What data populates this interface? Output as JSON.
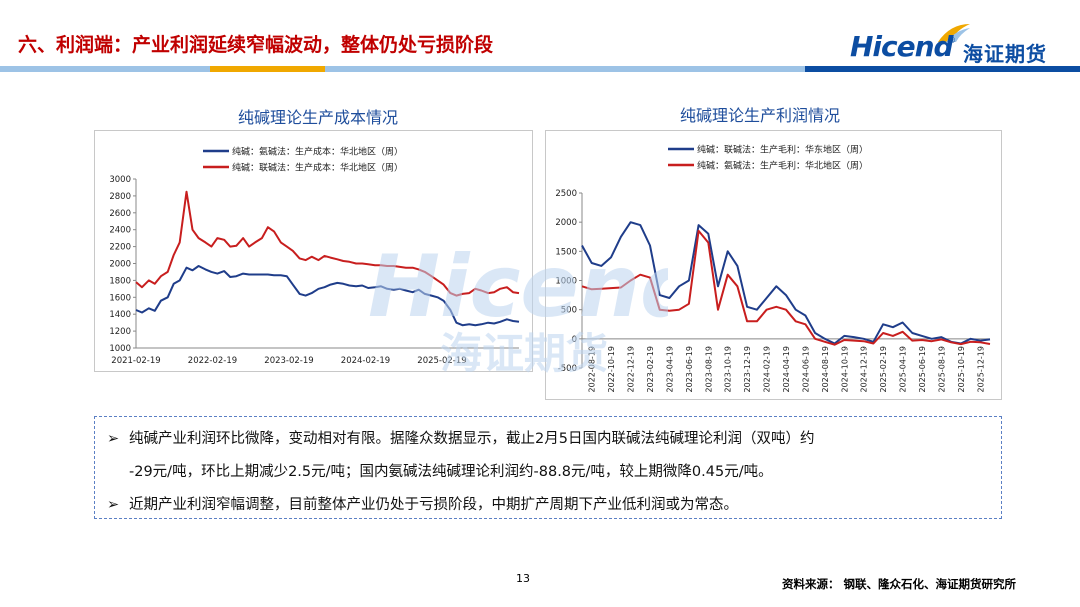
{
  "header": {
    "title": "六、利润端：产业利润延续窄幅波动，整体仍处亏损阶段"
  },
  "logo": {
    "brand_en": "Hicend",
    "brand_cn": "海证期货",
    "reg_mark": "®"
  },
  "watermark": {
    "text_en": "Hicend",
    "text_cn": "海证期货"
  },
  "colors": {
    "title_red": "#c00000",
    "chart_title_blue": "#1f4e9c",
    "series_navy": "#1f3d8a",
    "series_red": "#c81e1e",
    "stripe_gold": "#f0a800",
    "stripe_blue": "#0c4da2",
    "stripe_light": "#9dc3e6"
  },
  "chart_data": [
    {
      "type": "line",
      "title": "纯碱理论生产成本情况",
      "x_tick_labels": [
        "2021-02-19",
        "2022-02-19",
        "2023-02-19",
        "2024-02-19",
        "2025-02-19"
      ],
      "ylim": [
        1000,
        3000
      ],
      "y_ticks": [
        1000,
        1200,
        1400,
        1600,
        1800,
        2000,
        2200,
        2400,
        2600,
        2800,
        3000
      ],
      "legend_position": "top",
      "grid": false,
      "x": [
        2021.0,
        2021.08,
        2021.17,
        2021.25,
        2021.33,
        2021.42,
        2021.5,
        2021.58,
        2021.67,
        2021.75,
        2021.83,
        2021.92,
        2022.0,
        2022.08,
        2022.17,
        2022.25,
        2022.33,
        2022.42,
        2022.5,
        2022.58,
        2022.67,
        2022.75,
        2022.83,
        2022.92,
        2023.0,
        2023.08,
        2023.17,
        2023.25,
        2023.33,
        2023.42,
        2023.5,
        2023.58,
        2023.67,
        2023.75,
        2023.83,
        2023.92,
        2024.0,
        2024.08,
        2024.17,
        2024.25,
        2024.33,
        2024.42,
        2024.5,
        2024.58,
        2024.67,
        2024.75,
        2024.83,
        2024.92,
        2025.0,
        2025.08,
        2025.17,
        2025.25,
        2025.33,
        2025.42,
        2025.5,
        2025.58,
        2025.67,
        2025.75,
        2025.83,
        2025.92,
        2026.0,
        2026.08
      ],
      "series": [
        {
          "name": "纯碱：氨碱法：生产成本：华北地区（周）",
          "color": "#1f3d8a",
          "values": [
            1450,
            1420,
            1470,
            1440,
            1560,
            1600,
            1760,
            1800,
            1950,
            1920,
            1970,
            1930,
            1900,
            1880,
            1910,
            1840,
            1850,
            1880,
            1870,
            1870,
            1870,
            1870,
            1860,
            1860,
            1850,
            1750,
            1640,
            1620,
            1650,
            1700,
            1720,
            1750,
            1770,
            1760,
            1740,
            1730,
            1740,
            1710,
            1720,
            1730,
            1700,
            1690,
            1700,
            1680,
            1660,
            1690,
            1640,
            1620,
            1600,
            1560,
            1450,
            1300,
            1270,
            1280,
            1270,
            1280,
            1300,
            1290,
            1310,
            1340,
            1320,
            1310
          ]
        },
        {
          "name": "纯碱：联碱法：生产成本：华北地区（周）",
          "color": "#c81e1e",
          "values": [
            1780,
            1720,
            1800,
            1760,
            1850,
            1900,
            2100,
            2250,
            2850,
            2400,
            2300,
            2250,
            2200,
            2300,
            2280,
            2200,
            2210,
            2300,
            2200,
            2250,
            2300,
            2430,
            2380,
            2250,
            2200,
            2150,
            2060,
            2040,
            2080,
            2040,
            2090,
            2070,
            2050,
            2030,
            2020,
            2000,
            2000,
            1990,
            1980,
            1980,
            1970,
            1970,
            1960,
            1950,
            1950,
            1930,
            1900,
            1850,
            1800,
            1750,
            1650,
            1620,
            1640,
            1650,
            1700,
            1680,
            1650,
            1660,
            1700,
            1720,
            1660,
            1650
          ]
        }
      ]
    },
    {
      "type": "line",
      "title": "纯碱理论生产利润情况",
      "x_tick_labels": [
        "2022-08-19",
        "2022-10-19",
        "2022-12-19",
        "2023-02-19",
        "2023-04-19",
        "2023-06-19",
        "2023-08-19",
        "2023-10-19",
        "2023-12-19",
        "2024-02-19",
        "2024-04-19",
        "2024-06-19",
        "2024-08-19",
        "2024-10-19",
        "2024-12-19",
        "2025-02-19",
        "2025-04-19",
        "2025-06-19",
        "2025-08-19",
        "2025-10-19",
        "2025-12-19"
      ],
      "ylim": [
        -500,
        2500
      ],
      "y_ticks": [
        -500,
        0,
        500,
        1000,
        1500,
        2000,
        2500
      ],
      "legend_position": "top",
      "grid": false,
      "x": [
        0,
        0.5,
        1,
        1.5,
        2,
        2.5,
        3,
        3.5,
        4,
        4.5,
        5,
        5.5,
        6,
        6.5,
        7,
        7.5,
        8,
        8.5,
        9,
        9.5,
        10,
        10.5,
        11,
        11.5,
        12,
        12.5,
        13,
        13.5,
        14,
        14.5,
        15,
        15.5,
        16,
        16.5,
        17,
        17.5,
        18,
        18.5,
        19,
        19.5,
        20,
        20.5,
        21
      ],
      "series": [
        {
          "name": "纯碱：联碱法：生产毛利：华东地区（周）",
          "color": "#1f3d8a",
          "values": [
            1600,
            1300,
            1250,
            1400,
            1750,
            2000,
            1950,
            1600,
            750,
            700,
            900,
            1000,
            1950,
            1800,
            900,
            1500,
            1250,
            550,
            500,
            700,
            900,
            750,
            500,
            400,
            100,
            0,
            -80,
            50,
            30,
            0,
            -50,
            250,
            200,
            280,
            100,
            50,
            0,
            30,
            -50,
            -80,
            0,
            -30,
            -10
          ]
        },
        {
          "name": "纯碱：氨碱法：生产毛利：华北地区（周）",
          "color": "#c81e1e",
          "values": [
            900,
            850,
            860,
            870,
            880,
            1000,
            1100,
            1050,
            500,
            480,
            500,
            600,
            1850,
            1650,
            500,
            1100,
            900,
            300,
            300,
            500,
            550,
            500,
            300,
            250,
            0,
            -50,
            -100,
            -20,
            -30,
            -40,
            -80,
            100,
            50,
            120,
            -30,
            -20,
            -40,
            -10,
            -60,
            -90,
            -50,
            -60,
            -89
          ]
        }
      ]
    }
  ],
  "summary": {
    "bullet_mark": "➢",
    "bullet1_line1": "纯碱产业利润环比微降，变动相对有限。据隆众数据显示，截止2月5日国内联碱法纯碱理论利润（双吨）约",
    "bullet1_line2": "-29元/吨，环比上期减少2.5元/吨；国内氨碱法纯碱理论利润约-88.8元/吨，较上期微降0.45元/吨。",
    "bullet2": "近期产业利润窄幅调整，目前整体产业仍处于亏损阶段，中期扩产周期下产业低利润或为常态。"
  },
  "footer": {
    "page_number": "13",
    "source": "资料来源：  钢联、隆众石化、海证期货研究所"
  }
}
